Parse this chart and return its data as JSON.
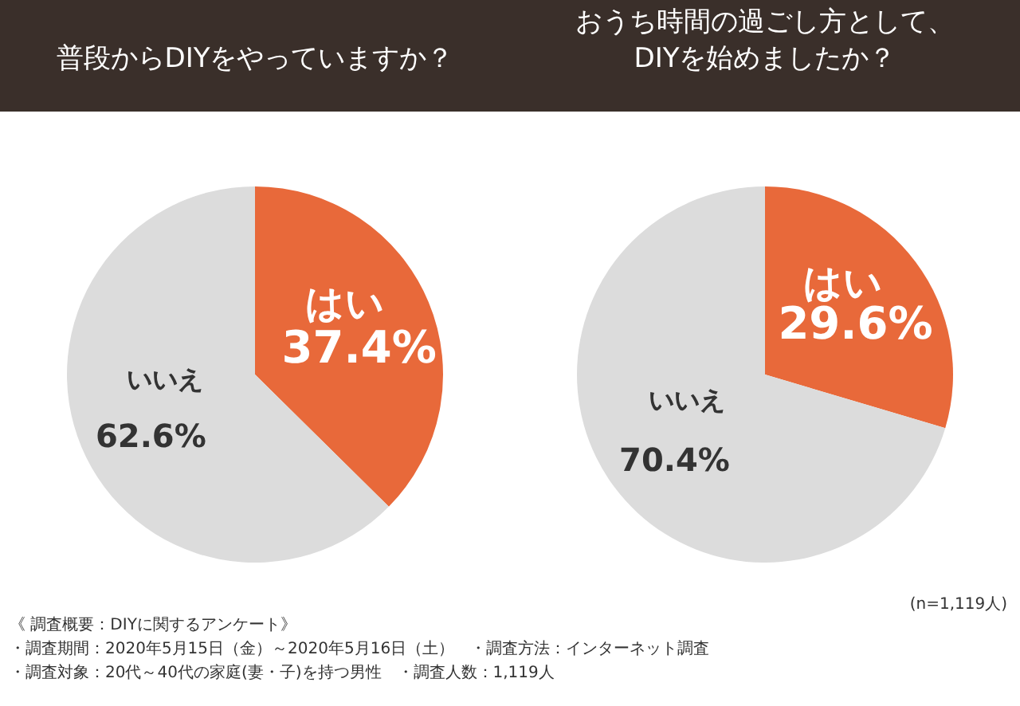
{
  "chart_data": [
    {
      "type": "pie",
      "title": "普段からDIYをやっていますか？",
      "categories": [
        "はい",
        "いいえ"
      ],
      "values": [
        37.4,
        62.6
      ],
      "value_labels": [
        "37.4%",
        "62.6%"
      ],
      "colors": [
        "#e8693a",
        "#dcdcdc"
      ],
      "annotations": [
        "《 調査概要：DIYに関するアンケート》",
        "・調査期間：2020年5月15日（金）～2020年5月16日（土）　・調査方法：インターネット調査",
        "・調査対象：20代～40代の家庭(妻・子)を持つ男性　・調査人数：1,119人"
      ]
    },
    {
      "type": "pie",
      "title": "おうち時間の過ごし方として、\nDIYを始めましたか？",
      "categories": [
        "はい",
        "いいえ"
      ],
      "values": [
        29.6,
        70.4
      ],
      "value_labels": [
        "29.6%",
        "70.4%"
      ],
      "colors": [
        "#e8693a",
        "#dcdcdc"
      ],
      "annotations": [
        "(n=1,119人)"
      ]
    }
  ]
}
